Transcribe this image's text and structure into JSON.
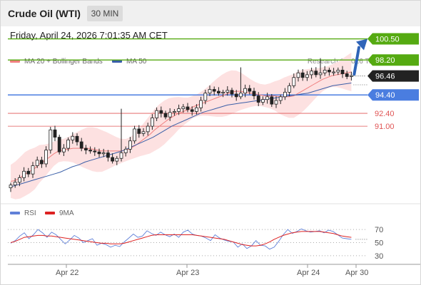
{
  "header": {
    "title": "Crude Oil (WTI)",
    "timeframe": "30 MIN"
  },
  "datetime": "Friday, April 24, 2026 7:01:35 AM CET",
  "legend": {
    "ma20_label": "MA 20 + Bollinger Bands",
    "ma50_label": "MA 50",
    "credit": "Research © 2026 Trading Central"
  },
  "rsi_legend": {
    "rsi_label": "RSI",
    "ma_label": "9MA"
  },
  "colors": {
    "ma20": "#f08080",
    "ma50": "#3a5fa8",
    "bands": "#fde1e1",
    "resistance": "#55aa11",
    "support_blue": "#4a7de0",
    "support_red": "#e05555",
    "price_label": "#222222",
    "arrow": "#2f64b8",
    "candle": "#222222",
    "rsi": "#6080d8",
    "rsi_ma": "#dd2222"
  },
  "chart_data": {
    "type": "candlestick",
    "symbol": "Crude Oil (WTI)",
    "interval": "30 MIN",
    "x_tick_labels": [
      "Apr 22",
      "Apr 23",
      "Apr 24",
      "Apr 30"
    ],
    "levels": [
      {
        "value": 100.5,
        "label": "100.50",
        "kind": "resistance",
        "style": "filled-green"
      },
      {
        "value": 98.2,
        "label": "98.20",
        "kind": "resistance",
        "style": "filled-green"
      },
      {
        "value": 96.46,
        "label": "96.46",
        "kind": "last-price",
        "style": "filled-dark"
      },
      {
        "value": 94.4,
        "label": "94.40",
        "kind": "pivot",
        "style": "filled-blue"
      },
      {
        "value": 92.4,
        "label": "92.40",
        "kind": "support",
        "style": "red-text"
      },
      {
        "value": 91.0,
        "label": "91.00",
        "kind": "support",
        "style": "red-text"
      }
    ],
    "arrow_target": 100.5,
    "close_series": [
      84.6,
      84.9,
      85.4,
      86.1,
      85.8,
      86.7,
      87.3,
      86.9,
      88.4,
      90.6,
      89.8,
      88.2,
      88.6,
      89.5,
      89.9,
      89.3,
      88.6,
      88.4,
      88.3,
      88.2,
      88.0,
      88.1,
      87.6,
      87.2,
      87.5,
      88.1,
      88.5,
      89.4,
      90.7,
      90.2,
      90.4,
      91.0,
      91.9,
      92.7,
      92.4,
      92.0,
      92.5,
      92.6,
      92.9,
      93.1,
      92.8,
      92.6,
      93.0,
      93.8,
      94.6,
      95.0,
      94.8,
      94.6,
      94.7,
      94.9,
      94.5,
      94.2,
      94.6,
      95.1,
      94.8,
      94.3,
      93.6,
      93.9,
      94.2,
      93.4,
      93.8,
      94.2,
      94.7,
      95.4,
      96.3,
      96.8,
      96.3,
      96.6,
      97.0,
      96.6,
      96.8,
      97.1,
      96.9,
      96.9,
      97.1,
      96.7,
      96.4,
      96.5
    ],
    "special_wicks": [
      {
        "index": 25,
        "high": 92.9
      },
      {
        "index": 52,
        "high": 97.4
      },
      {
        "index": 70,
        "high": 98.4
      }
    ],
    "ma20": [
      85.0,
      85.1,
      85.4,
      85.8,
      86.1,
      86.4,
      86.9,
      87.2,
      87.6,
      88.0,
      88.3,
      88.4,
      88.5,
      88.6,
      88.6,
      88.6,
      88.6,
      88.5,
      88.4,
      88.3,
      88.3,
      88.3,
      88.3,
      88.3,
      88.4,
      88.6,
      88.9,
      89.3,
      89.7,
      90.1,
      90.6,
      91.0,
      91.4,
      91.8,
      92.1,
      92.4,
      92.6,
      92.8,
      93.1,
      93.3,
      93.5,
      93.7,
      93.9,
      94.1,
      94.3,
      94.5,
      94.7,
      94.8,
      94.8,
      94.7,
      94.6,
      94.5,
      94.4,
      94.3,
      94.3,
      94.3,
      94.2,
      94.2,
      94.2,
      94.3,
      94.6,
      94.9,
      95.2,
      95.5,
      95.8,
      96.1,
      96.3,
      96.5,
      96.6,
      96.7,
      96.8,
      96.9
    ],
    "ma50": [
      84.4,
      84.6,
      84.8,
      85.0,
      85.2,
      85.4,
      85.6,
      85.8,
      86.0,
      86.3,
      86.6,
      86.8,
      87.1,
      87.3,
      87.5,
      87.7,
      87.9,
      88.1,
      88.3,
      88.6,
      88.9,
      89.2,
      89.5,
      89.8,
      90.2,
      90.6,
      91.0,
      91.3,
      91.6,
      91.9,
      92.2,
      92.5,
      92.7,
      92.9,
      93.1,
      93.3,
      93.4,
      93.5,
      93.6,
      93.7,
      93.8,
      93.9,
      94.0,
      94.1,
      94.2,
      94.3,
      94.4,
      94.5,
      94.6,
      94.8,
      95.0,
      95.2,
      95.4,
      95.5,
      95.6,
      95.7
    ],
    "bollinger_width": 1.8,
    "rsi": {
      "levels": [
        70,
        50,
        30
      ],
      "level_labels": [
        "70",
        "50",
        "30"
      ],
      "values": [
        49,
        53,
        60,
        65,
        56,
        62,
        70,
        65,
        58,
        66,
        62,
        55,
        48,
        54,
        61,
        57,
        50,
        53,
        56,
        46,
        49,
        47,
        43,
        46,
        44,
        51,
        57,
        63,
        58,
        60,
        68,
        64,
        61,
        66,
        62,
        59,
        63,
        58,
        66,
        69,
        63,
        61,
        60,
        57,
        53,
        62,
        57,
        54,
        52,
        51,
        43,
        48,
        41,
        45,
        53,
        46,
        45,
        40,
        43,
        52,
        62,
        70,
        64,
        67,
        71,
        68,
        66,
        67,
        68,
        65,
        69,
        67,
        62,
        57,
        56,
        55
      ],
      "ma9": [
        50,
        52,
        55,
        58,
        59,
        60,
        61,
        61,
        60,
        60,
        59,
        58,
        57,
        56,
        55,
        54,
        53,
        52,
        51,
        50,
        49,
        49,
        48,
        48,
        48,
        49,
        51,
        53,
        55,
        57,
        59,
        61,
        62,
        62,
        62,
        62,
        62,
        62,
        62,
        62,
        62,
        61,
        60,
        59,
        58,
        57,
        56,
        55,
        53,
        51,
        49,
        47,
        46,
        45,
        45,
        46,
        48,
        51,
        55,
        58,
        61,
        63,
        65,
        66,
        67,
        67,
        67,
        67,
        67,
        66,
        65,
        64,
        62,
        60,
        59,
        58
      ]
    }
  }
}
